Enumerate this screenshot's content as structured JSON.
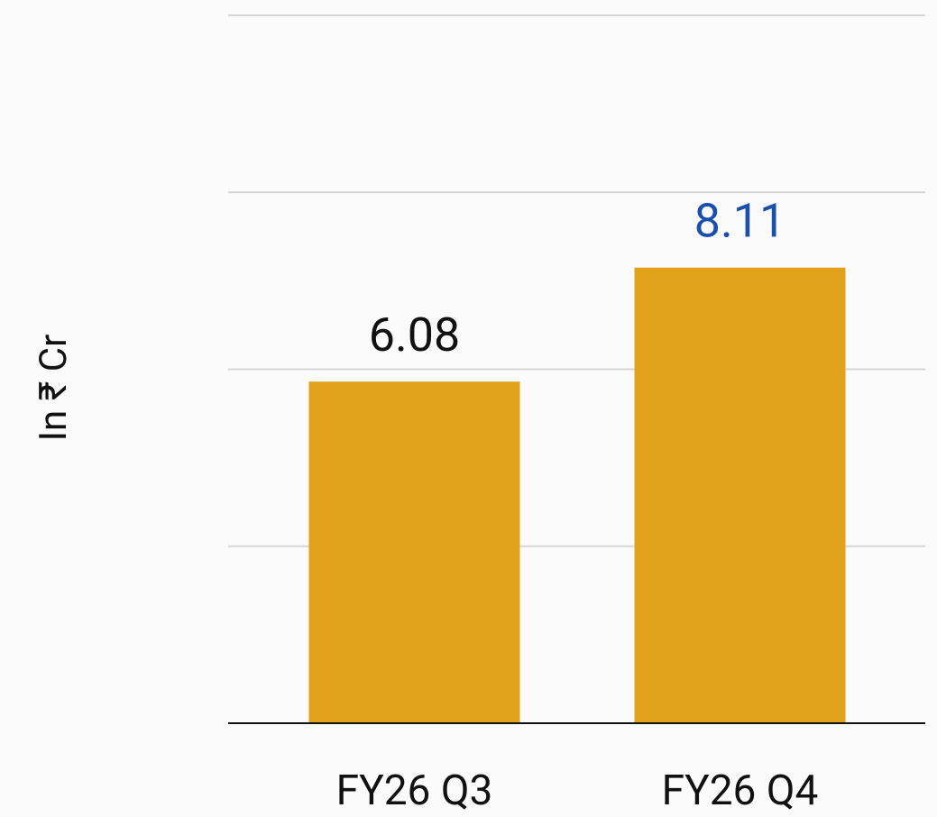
{
  "chart_data": {
    "type": "bar",
    "y_label": "In ₹ Cr",
    "categories": [
      "FY26 Q3",
      "FY26 Q4"
    ],
    "values": [
      6.08,
      8.11
    ],
    "color": "#e2a11b",
    "value_label_colors": [
      "#111111",
      "#1a4fad"
    ],
    "ylim": [
      0,
      12.6
    ],
    "yticks": [
      0,
      3.15,
      6.3,
      9.45,
      12.6
    ],
    "grid": true
  }
}
